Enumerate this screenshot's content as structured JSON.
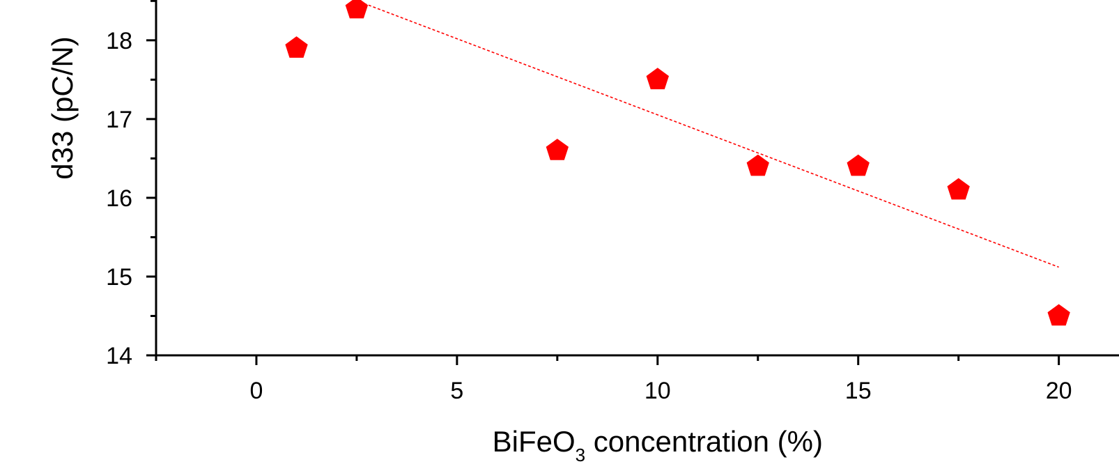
{
  "chart_data": {
    "type": "scatter",
    "title": "",
    "xlabel": {
      "prefix": "BiFeO",
      "subscript": "3",
      "suffix": " concentration (%)"
    },
    "ylabel": "d33 (pC/N)",
    "xlim": [
      -2.5,
      21.5
    ],
    "ylim": [
      14,
      18.6
    ],
    "x_ticks": [
      0,
      5,
      10,
      15,
      20
    ],
    "x_tick_labels": [
      "0",
      "5",
      "10",
      "15",
      "20"
    ],
    "y_ticks": [
      14,
      15,
      16,
      17,
      18
    ],
    "y_tick_labels": [
      "14",
      "15",
      "16",
      "17",
      "18"
    ],
    "grid": false,
    "legend": "none",
    "series": [
      {
        "marker": "pentagon",
        "color": "#ff0000",
        "x": [
          1,
          2.5,
          7.5,
          10,
          12.5,
          15,
          17.5,
          20
        ],
        "y": [
          17.9,
          18.4,
          16.6,
          17.5,
          16.4,
          16.4,
          16.1,
          14.5
        ]
      }
    ],
    "trendline": {
      "style": "dotted",
      "color": "#ff0000",
      "x": [
        2,
        20
      ],
      "y": [
        18.6,
        15.12
      ]
    }
  }
}
